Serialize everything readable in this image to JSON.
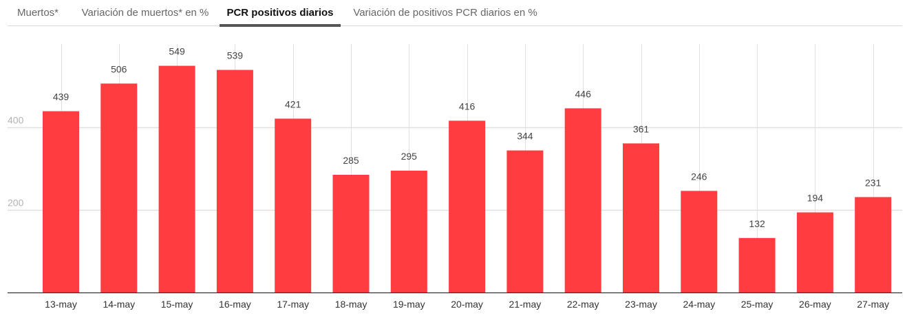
{
  "tabs": [
    {
      "label": "Muertos*",
      "active": false
    },
    {
      "label": "Variación de muertos* en %",
      "active": false
    },
    {
      "label": "PCR positivos diarios",
      "active": true
    },
    {
      "label": "Variación de positivos PCR diarios en %",
      "active": false
    }
  ],
  "colors": {
    "bar": "#ff3d41",
    "grid": "#e0e0e0",
    "axis": "#333333"
  },
  "chart_data": {
    "type": "bar",
    "categories": [
      "13-may",
      "14-may",
      "15-may",
      "16-may",
      "17-may",
      "18-may",
      "19-may",
      "20-may",
      "21-may",
      "22-may",
      "23-may",
      "24-may",
      "25-may",
      "26-may",
      "27-may"
    ],
    "values": [
      439,
      506,
      549,
      539,
      421,
      285,
      295,
      416,
      344,
      446,
      361,
      246,
      132,
      194,
      231
    ],
    "yticks": [
      200,
      400
    ],
    "ylim": [
      0,
      600
    ],
    "grid": true,
    "data_labels": true
  }
}
